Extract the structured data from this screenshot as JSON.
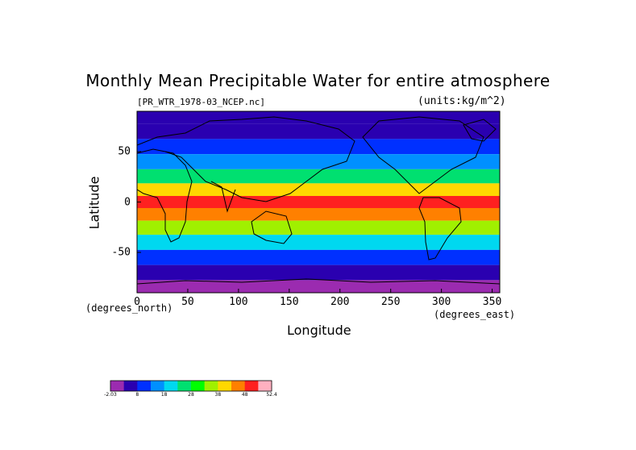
{
  "title": "Monthly Mean Precipitable Water for entire atmosphere",
  "subtitle_file": "[PR_WTR_1978-03_NCEP.nc]",
  "subtitle_units": "(units:kg/m^2)",
  "chart_data": {
    "type": "heatmap",
    "title": "Monthly Mean Precipitable Water for entire atmosphere",
    "xlabel": "Longitude",
    "ylabel": "Latitude",
    "x_unit": "(degrees_east)",
    "y_unit": "(degrees_north)",
    "xlim": [
      0,
      357.5
    ],
    "ylim": [
      -90,
      90
    ],
    "x_ticks": [
      "0",
      "50",
      "100",
      "150",
      "200",
      "250",
      "300",
      "350"
    ],
    "y_ticks": [
      "50",
      "0",
      "-50"
    ],
    "colorbar": {
      "labels": [
        "-2.03",
        "8",
        "18",
        "28",
        "38",
        "48",
        "52.4"
      ],
      "colors": [
        "#9b2bb0",
        "#2a00b0",
        "#0030ff",
        "#0090ff",
        "#00d8f0",
        "#00e070",
        "#00ff00",
        "#a0f000",
        "#ffd800",
        "#ff8000",
        "#ff2020",
        "#ffb0c0"
      ]
    },
    "latitude_band_means": [
      {
        "lat": 85,
        "value": 3
      },
      {
        "lat": 70,
        "value": 6
      },
      {
        "lat": 55,
        "value": 10
      },
      {
        "lat": 40,
        "value": 16
      },
      {
        "lat": 25,
        "value": 24
      },
      {
        "lat": 12,
        "value": 36
      },
      {
        "lat": 0,
        "value": 44
      },
      {
        "lat": -12,
        "value": 42
      },
      {
        "lat": -25,
        "value": 30
      },
      {
        "lat": -40,
        "value": 18
      },
      {
        "lat": -55,
        "value": 11
      },
      {
        "lat": -70,
        "value": 5
      },
      {
        "lat": -85,
        "value": 0
      }
    ]
  }
}
